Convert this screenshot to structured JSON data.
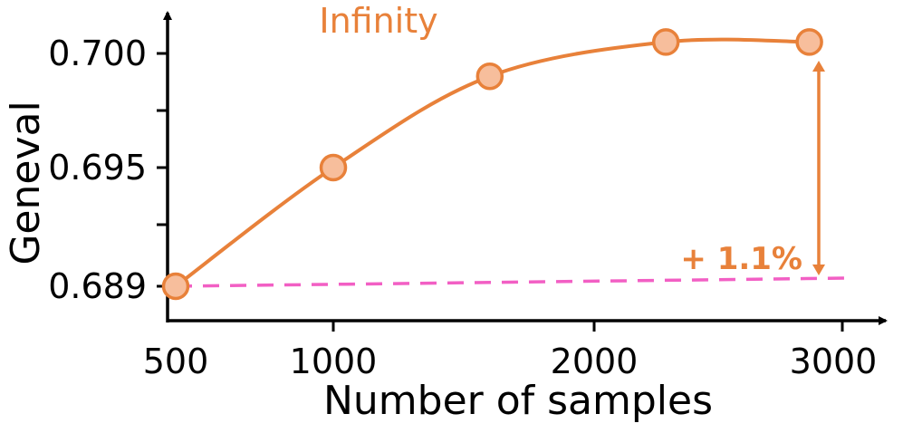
{
  "chart_data": {
    "type": "line",
    "x": [
      500,
      1000,
      1600,
      2300,
      2900
    ],
    "series": [
      {
        "name": "Infinity",
        "values": [
          0.689,
          0.695,
          0.699,
          0.7005,
          0.7005
        ],
        "color": "#E8813A",
        "marker_fill": "#F7BE9C"
      }
    ],
    "baseline": {
      "value": 0.689,
      "color": "#F25FC4",
      "style": "dashed"
    },
    "annotation": {
      "text": "+ 1.1%",
      "color": "#E8813A"
    },
    "xlabel": "Number of samples",
    "ylabel": "Geneval",
    "xticks": [
      500,
      1000,
      2000,
      3000
    ],
    "xtick_labels": [
      "500",
      "1000",
      "2000",
      "3000"
    ],
    "yticks": [
      0.689,
      0.695,
      0.7
    ],
    "ytick_labels": [
      "0.689",
      "0.695",
      "0.700"
    ],
    "ylim": [
      0.6875,
      0.702
    ],
    "grid": false
  }
}
